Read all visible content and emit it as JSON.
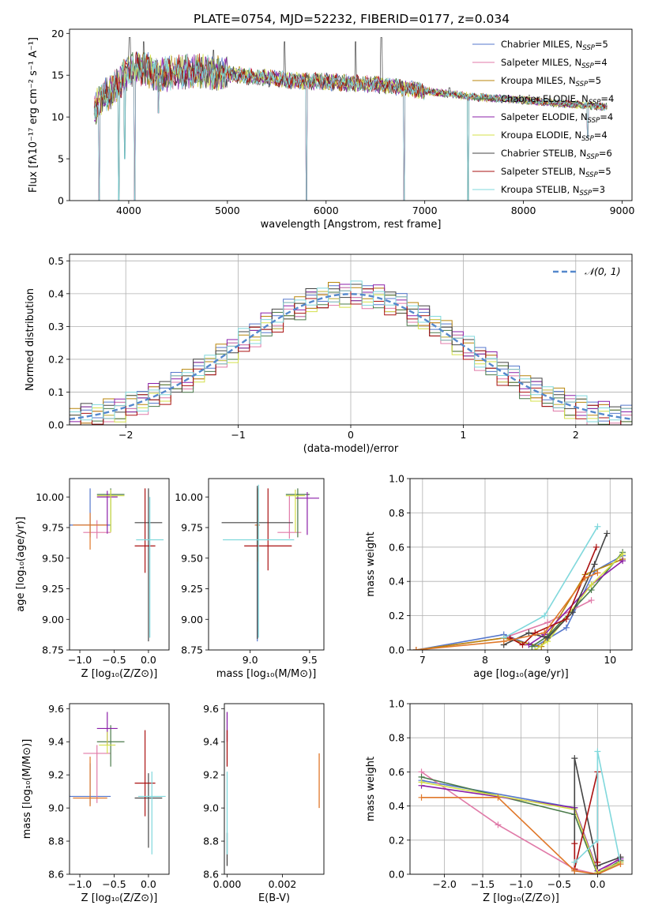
{
  "title": "PLATE=0754, MJD=52232, FIBERID=0177, z=0.034",
  "colors": {
    "chabrier_miles": "#5577cc",
    "salpeter_miles": "#e07aa8",
    "kroupa_miles": "#b8860b",
    "chabrier_elodie": "#4a7a4a",
    "salpeter_elodie": "#8b1fa8",
    "kroupa_elodie": "#d4e04a",
    "chabrier_stelib": "#444444",
    "salpeter_stelib": "#aa1111",
    "kroupa_stelib": "#80d8dc",
    "orange": "#e0782a",
    "normal": "#5588cc"
  },
  "legend": [
    {
      "name": "Chabrier MILES",
      "nssp": "5",
      "color": "#5577cc"
    },
    {
      "name": "Salpeter MILES",
      "nssp": "4",
      "color": "#e07aa8"
    },
    {
      "name": "Kroupa MILES",
      "nssp": "5",
      "color": "#b8860b"
    },
    {
      "name": "Chabrier ELODIE",
      "nssp": "4",
      "color": "#4a7a4a"
    },
    {
      "name": "Salpeter ELODIE",
      "nssp": "4",
      "color": "#8b1fa8"
    },
    {
      "name": "Kroupa ELODIE",
      "nssp": "4",
      "color": "#d4e04a"
    },
    {
      "name": "Chabrier STELIB",
      "nssp": "6",
      "color": "#444444"
    },
    {
      "name": "Salpeter STELIB",
      "nssp": "5",
      "color": "#aa1111"
    },
    {
      "name": "Kroupa STELIB",
      "nssp": "3",
      "color": "#80d8dc"
    }
  ],
  "chart_data": [
    {
      "id": "spectrum",
      "type": "line",
      "xlabel": "wavelength [Angstrom, rest frame]",
      "ylabel": "Flux [fλ10⁻¹⁷ erg cm⁻² s⁻¹ A⁻¹]",
      "xlim": [
        3400,
        9100
      ],
      "ylim": [
        0,
        20.5
      ],
      "xticks": [
        4000,
        5000,
        6000,
        7000,
        8000,
        9000
      ],
      "yticks": [
        0,
        5,
        10,
        15,
        20
      ],
      "grid": false,
      "legend_position": "top-right",
      "continuum": {
        "x": [
          3650,
          3700,
          3800,
          3900,
          4000,
          4100,
          4200,
          4300,
          4500,
          4700,
          5000,
          5300,
          5600,
          6000,
          6500,
          7000,
          7500,
          8000,
          8500,
          8850
        ],
        "y": [
          10.5,
          12.0,
          12.8,
          14.0,
          15.6,
          16.0,
          15.6,
          15.0,
          15.4,
          15.5,
          15.1,
          14.8,
          14.4,
          14.2,
          13.9,
          13.1,
          12.4,
          12.0,
          11.5,
          11.2
        ]
      },
      "dips": [
        {
          "x": 3700,
          "y": 0
        },
        {
          "x": 3900,
          "y": 0
        },
        {
          "x": 3960,
          "y": 5
        },
        {
          "x": 4060,
          "y": 0
        },
        {
          "x": 4300,
          "y": 10.5
        },
        {
          "x": 5800,
          "y": 0
        },
        {
          "x": 6790,
          "y": 0
        },
        {
          "x": 7440,
          "y": 0
        },
        {
          "x": 8650,
          "y": 7.5
        }
      ],
      "spikes": [
        {
          "x": 4010,
          "y": 19.5
        },
        {
          "x": 4150,
          "y": 19
        },
        {
          "x": 4860,
          "y": 18
        },
        {
          "x": 5580,
          "y": 19
        },
        {
          "x": 6300,
          "y": 19
        },
        {
          "x": 6560,
          "y": 19.5
        },
        {
          "x": 7250,
          "y": 13.5
        }
      ]
    },
    {
      "id": "residual-distribution",
      "type": "line",
      "xlabel": "(data-model)/error",
      "ylabel": "Normed distribution",
      "xlim": [
        -2.5,
        2.5
      ],
      "ylim": [
        0,
        0.52
      ],
      "xticks": [
        -2,
        -1,
        0,
        1,
        2
      ],
      "yticks": [
        0.0,
        0.1,
        0.2,
        0.3,
        0.4,
        0.5
      ],
      "grid": true,
      "legend_position": "top-right",
      "normal_label": "𝒩(0, 1)",
      "normal": {
        "mean": 0,
        "sigma": 1
      },
      "bin_width": 0.1,
      "hist_perturb": [
        0.02,
        -0.01,
        0.03,
        -0.02,
        0.01,
        0.04,
        -0.03,
        0.02,
        -0.01,
        0.03
      ]
    },
    {
      "id": "age-vs-Z",
      "type": "scatter",
      "xlabel": "Z [log₁₀(Z/Z⊙)]",
      "ylabel": "age  [log₁₀(age/yr)]",
      "xlim": [
        -1.15,
        0.3
      ],
      "ylim": [
        8.75,
        10.15
      ],
      "xticks": [
        -1.0,
        -0.5,
        0.0
      ],
      "yticks": [
        8.75,
        9.0,
        9.25,
        9.5,
        9.75,
        10.0
      ],
      "points": [
        {
          "x": -0.85,
          "y": 9.77,
          "xerr": 0.3,
          "yerr": [
            0.1,
            0.3
          ],
          "color": "#5577cc"
        },
        {
          "x": -0.75,
          "y": 9.71,
          "xerr": 0.2,
          "yerr": [
            0.05,
            0.1
          ],
          "color": "#e07aa8"
        },
        {
          "x": -0.85,
          "y": 9.77,
          "xerr": 0.25,
          "yerr": [
            0.2,
            0.1
          ],
          "color": "#e0782a"
        },
        {
          "x": -0.55,
          "y": 10.02,
          "xerr": 0.2,
          "yerr": [
            0.3,
            0.05
          ],
          "color": "#4a7a4a"
        },
        {
          "x": -0.6,
          "y": 10.0,
          "xerr": 0.15,
          "yerr": [
            0.3,
            0.05
          ],
          "color": "#8b1fa8"
        },
        {
          "x": -0.55,
          "y": 10.01,
          "xerr": 0.2,
          "yerr": [
            0.3,
            0.05
          ],
          "color": "#d4e04a"
        },
        {
          "x": 0.0,
          "y": 9.79,
          "xerr": 0.2,
          "yerr": [
            0.97,
            0.28
          ],
          "color": "#444444"
        },
        {
          "x": -0.05,
          "y": 9.6,
          "xerr": 0.15,
          "yerr": [
            0.22,
            0.47
          ],
          "color": "#aa1111"
        },
        {
          "x": 0.02,
          "y": 9.65,
          "xerr": 0.2,
          "yerr": [
            0.8,
            0.35
          ],
          "color": "#80d8dc"
        }
      ]
    },
    {
      "id": "age-vs-mass",
      "type": "scatter",
      "xlabel": "mass [log₁₀(M/M⊙)]",
      "ylabel": "",
      "xlim": [
        8.65,
        9.62
      ],
      "ylim": [
        8.75,
        10.15
      ],
      "xticks": [
        9.0,
        9.5
      ],
      "yticks": [
        8.75,
        9.0,
        9.25,
        9.5,
        9.75,
        10.0
      ],
      "points": [
        {
          "x": 9.06,
          "y": 9.77,
          "xerr": 0.02,
          "yerr": [
            0.95,
            0.3
          ],
          "color": "#5577cc"
        },
        {
          "x": 9.33,
          "y": 9.71,
          "xerr": 0.1,
          "yerr": [
            0.05,
            0.3
          ],
          "color": "#e07aa8"
        },
        {
          "x": 9.06,
          "y": 9.77,
          "xerr": 0.02,
          "yerr": [
            0.3,
            0.3
          ],
          "color": "#e0782a"
        },
        {
          "x": 9.4,
          "y": 10.02,
          "xerr": 0.1,
          "yerr": [
            0.35,
            0.05
          ],
          "color": "#4a7a4a"
        },
        {
          "x": 9.48,
          "y": 9.99,
          "xerr": 0.1,
          "yerr": [
            0.3,
            0.05
          ],
          "color": "#8b1fa8"
        },
        {
          "x": 9.38,
          "y": 10.01,
          "xerr": 0.08,
          "yerr": [
            0.3,
            0.05
          ],
          "color": "#d4e04a"
        },
        {
          "x": 9.06,
          "y": 9.79,
          "xerr": 0.3,
          "yerr": [
            0.95,
            0.3
          ],
          "color": "#444444"
        },
        {
          "x": 9.15,
          "y": 9.6,
          "xerr": 0.2,
          "yerr": [
            0.2,
            0.47
          ],
          "color": "#aa1111"
        },
        {
          "x": 9.07,
          "y": 9.65,
          "xerr": 0.3,
          "yerr": [
            0.8,
            0.45
          ],
          "color": "#80d8dc"
        }
      ]
    },
    {
      "id": "weight-vs-age",
      "type": "line",
      "xlabel": "age  [log₁₀(age/yr)]",
      "ylabel": "mass weight",
      "xlim": [
        6.8,
        10.35
      ],
      "ylim": [
        0,
        1.0
      ],
      "xticks": [
        7,
        8,
        9,
        10
      ],
      "yticks": [
        0.0,
        0.2,
        0.4,
        0.6,
        0.8,
        1.0
      ],
      "grid": true,
      "series": [
        {
          "color": "#5577cc",
          "x": [
            6.9,
            8.3,
            8.8,
            9.3,
            9.75,
            10.2
          ],
          "y": [
            0.0,
            0.09,
            0.02,
            0.13,
            0.46,
            0.55
          ]
        },
        {
          "color": "#e07aa8",
          "x": [
            6.9,
            8.3,
            9.0,
            9.7
          ],
          "y": [
            0.0,
            0.07,
            0.16,
            0.29
          ]
        },
        {
          "color": "#b8860b",
          "x": [
            6.9,
            8.3,
            8.9,
            9.6,
            10.2
          ],
          "y": [
            0.0,
            0.07,
            0.02,
            0.44,
            0.53
          ]
        },
        {
          "color": "#4a7a4a",
          "x": [
            8.75,
            9.0,
            9.7,
            10.2
          ],
          "y": [
            0.02,
            0.08,
            0.35,
            0.57
          ]
        },
        {
          "color": "#8b1fa8",
          "x": [
            8.7,
            8.95,
            9.7,
            10.2
          ],
          "y": [
            0.03,
            0.09,
            0.38,
            0.52
          ]
        },
        {
          "color": "#d4e04a",
          "x": [
            8.8,
            9.0,
            9.7,
            10.2
          ],
          "y": [
            0.0,
            0.05,
            0.38,
            0.56
          ]
        },
        {
          "color": "#444444",
          "x": [
            8.3,
            8.7,
            9.0,
            9.4,
            9.75,
            9.95
          ],
          "y": [
            0.03,
            0.1,
            0.07,
            0.22,
            0.5,
            0.68
          ]
        },
        {
          "color": "#aa1111",
          "x": [
            8.4,
            8.6,
            8.8,
            9.3,
            9.78
          ],
          "y": [
            0.07,
            0.03,
            0.1,
            0.18,
            0.6
          ]
        },
        {
          "color": "#80d8dc",
          "x": [
            8.3,
            8.95,
            9.8
          ],
          "y": [
            0.07,
            0.2,
            0.72
          ]
        },
        {
          "color": "#e0782a",
          "x": [
            6.9,
            8.3,
            8.95,
            9.6,
            9.8
          ],
          "y": [
            0.0,
            0.05,
            0.1,
            0.42,
            0.45
          ]
        }
      ]
    },
    {
      "id": "mass-vs-Z",
      "type": "scatter",
      "xlabel": "Z [log₁₀(Z/Z⊙)]",
      "ylabel": "mass [log₁₀(M/M⊙)]",
      "xlim": [
        -1.15,
        0.3
      ],
      "ylim": [
        8.6,
        9.63
      ],
      "xticks": [
        -1.0,
        -0.5,
        0.0
      ],
      "yticks": [
        8.6,
        8.8,
        9.0,
        9.2,
        9.4,
        9.6
      ],
      "points": [
        {
          "x": -0.85,
          "y": 9.07,
          "xerr": 0.3,
          "yerr": [
            0.05,
            0.2
          ],
          "color": "#5577cc"
        },
        {
          "x": -0.75,
          "y": 9.33,
          "xerr": 0.2,
          "yerr": [
            0.3,
            0.05
          ],
          "color": "#e07aa8"
        },
        {
          "x": -0.85,
          "y": 9.06,
          "xerr": 0.25,
          "yerr": [
            0.05,
            0.25
          ],
          "color": "#e0782a"
        },
        {
          "x": -0.55,
          "y": 9.4,
          "xerr": 0.2,
          "yerr": [
            0.15,
            0.1
          ],
          "color": "#4a7a4a"
        },
        {
          "x": -0.6,
          "y": 9.48,
          "xerr": 0.15,
          "yerr": [
            0.1,
            0.1
          ],
          "color": "#8b1fa8"
        },
        {
          "x": -0.6,
          "y": 9.38,
          "xerr": 0.12,
          "yerr": [
            0.05,
            0.08
          ],
          "color": "#d4e04a"
        },
        {
          "x": 0.0,
          "y": 9.06,
          "xerr": 0.2,
          "yerr": [
            0.3,
            0.15
          ],
          "color": "#444444"
        },
        {
          "x": -0.05,
          "y": 9.15,
          "xerr": 0.15,
          "yerr": [
            0.2,
            0.32
          ],
          "color": "#aa1111"
        },
        {
          "x": 0.05,
          "y": 9.07,
          "xerr": 0.2,
          "yerr": [
            0.35,
            0.15
          ],
          "color": "#80d8dc"
        }
      ]
    },
    {
      "id": "mass-vs-EBV",
      "type": "scatter",
      "xlabel": "E(B-V)",
      "ylabel": "",
      "xlim": [
        -0.0001,
        0.0035
      ],
      "ylim": [
        8.6,
        9.63
      ],
      "xticks": [
        0.0,
        0.002
      ],
      "yticks": [
        8.6,
        8.8,
        9.0,
        9.2,
        9.4,
        9.6
      ],
      "bars": [
        {
          "x": 0.0,
          "y0": 8.65,
          "y1": 8.85,
          "color": "#444444"
        },
        {
          "x": 0.0,
          "y0": 9.4,
          "y1": 9.58,
          "color": "#8b1fa8"
        },
        {
          "x": 0.0,
          "y0": 9.25,
          "y1": 9.47,
          "color": "#aa1111"
        },
        {
          "x": 0.0,
          "y0": 8.72,
          "y1": 9.22,
          "color": "#80d8dc"
        },
        {
          "x": 0.00333,
          "y0": 9.0,
          "y1": 9.33,
          "color": "#e0782a"
        }
      ]
    },
    {
      "id": "weight-vs-Z",
      "type": "line",
      "xlabel": "Z [log₁₀(Z/Z⊙)]",
      "ylabel": "mass weight",
      "xlim": [
        -2.45,
        0.45
      ],
      "ylim": [
        0,
        1.0
      ],
      "xticks": [
        -2.0,
        -1.5,
        -1.0,
        -0.5,
        0.0
      ],
      "yticks": [
        0.0,
        0.2,
        0.4,
        0.6,
        0.8,
        1.0
      ],
      "grid": true,
      "series": [
        {
          "color": "#5577cc",
          "x": [
            -2.3,
            -0.3,
            0.0,
            0.3
          ],
          "y": [
            0.55,
            0.39,
            0.0,
            0.07
          ]
        },
        {
          "color": "#e07aa8",
          "x": [
            -2.3,
            -1.3,
            -0.3,
            0.0,
            0.3
          ],
          "y": [
            0.6,
            0.29,
            0.03,
            0.0,
            0.1
          ]
        },
        {
          "color": "#4a7a4a",
          "x": [
            -2.3,
            -0.3,
            0.0,
            0.3
          ],
          "y": [
            0.57,
            0.35,
            0.0,
            0.08
          ]
        },
        {
          "color": "#8b1fa8",
          "x": [
            -2.3,
            -0.3,
            0.0,
            0.3
          ],
          "y": [
            0.52,
            0.39,
            0.02,
            0.09
          ]
        },
        {
          "color": "#d4e04a",
          "x": [
            -2.3,
            -0.3,
            0.0,
            0.3
          ],
          "y": [
            0.54,
            0.38,
            0.01,
            0.07
          ]
        },
        {
          "color": "#444444",
          "x": [
            -0.3,
            -0.3,
            0.0,
            0.3
          ],
          "y": [
            0.02,
            0.68,
            0.05,
            0.1
          ]
        },
        {
          "color": "#aa1111",
          "x": [
            -0.3,
            -0.3,
            0.0,
            0.0
          ],
          "y": [
            0.18,
            0.03,
            0.6,
            0.07
          ]
        },
        {
          "color": "#80d8dc",
          "x": [
            -0.3,
            0.0,
            0.0,
            0.3
          ],
          "y": [
            0.07,
            0.2,
            0.72,
            0.06
          ]
        },
        {
          "color": "#e0782a",
          "x": [
            -2.3,
            -1.3,
            -0.3,
            0.0,
            0.3
          ],
          "y": [
            0.45,
            0.45,
            0.02,
            0.0,
            0.06
          ]
        }
      ]
    }
  ]
}
